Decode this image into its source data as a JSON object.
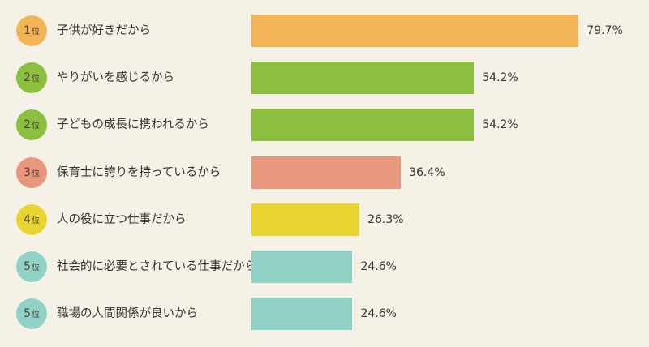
{
  "chart_data": {
    "type": "bar",
    "orientation": "horizontal",
    "rank_suffix": "位",
    "categories": [
      "子供が好きだから",
      "やりがいを感じるから",
      "子どもの成長に携われるから",
      "保育士に誇りを持っているから",
      "人の役に立つ仕事だから",
      "社会的に必要とされている仕事だから",
      "職場の人間関係が良いから"
    ],
    "ranks": [
      "1",
      "2",
      "2",
      "3",
      "4",
      "5",
      "5"
    ],
    "values": [
      79.7,
      54.2,
      54.2,
      36.4,
      26.3,
      24.6,
      24.6
    ],
    "value_labels": [
      "79.7%",
      "54.2%",
      "54.2%",
      "36.4%",
      "26.3%",
      "24.6%",
      "24.6%"
    ],
    "colors": [
      "#f2b456",
      "#8cbf3f",
      "#8cbf3f",
      "#e8967c",
      "#e8d532",
      "#91d1c6",
      "#91d1c6"
    ]
  }
}
